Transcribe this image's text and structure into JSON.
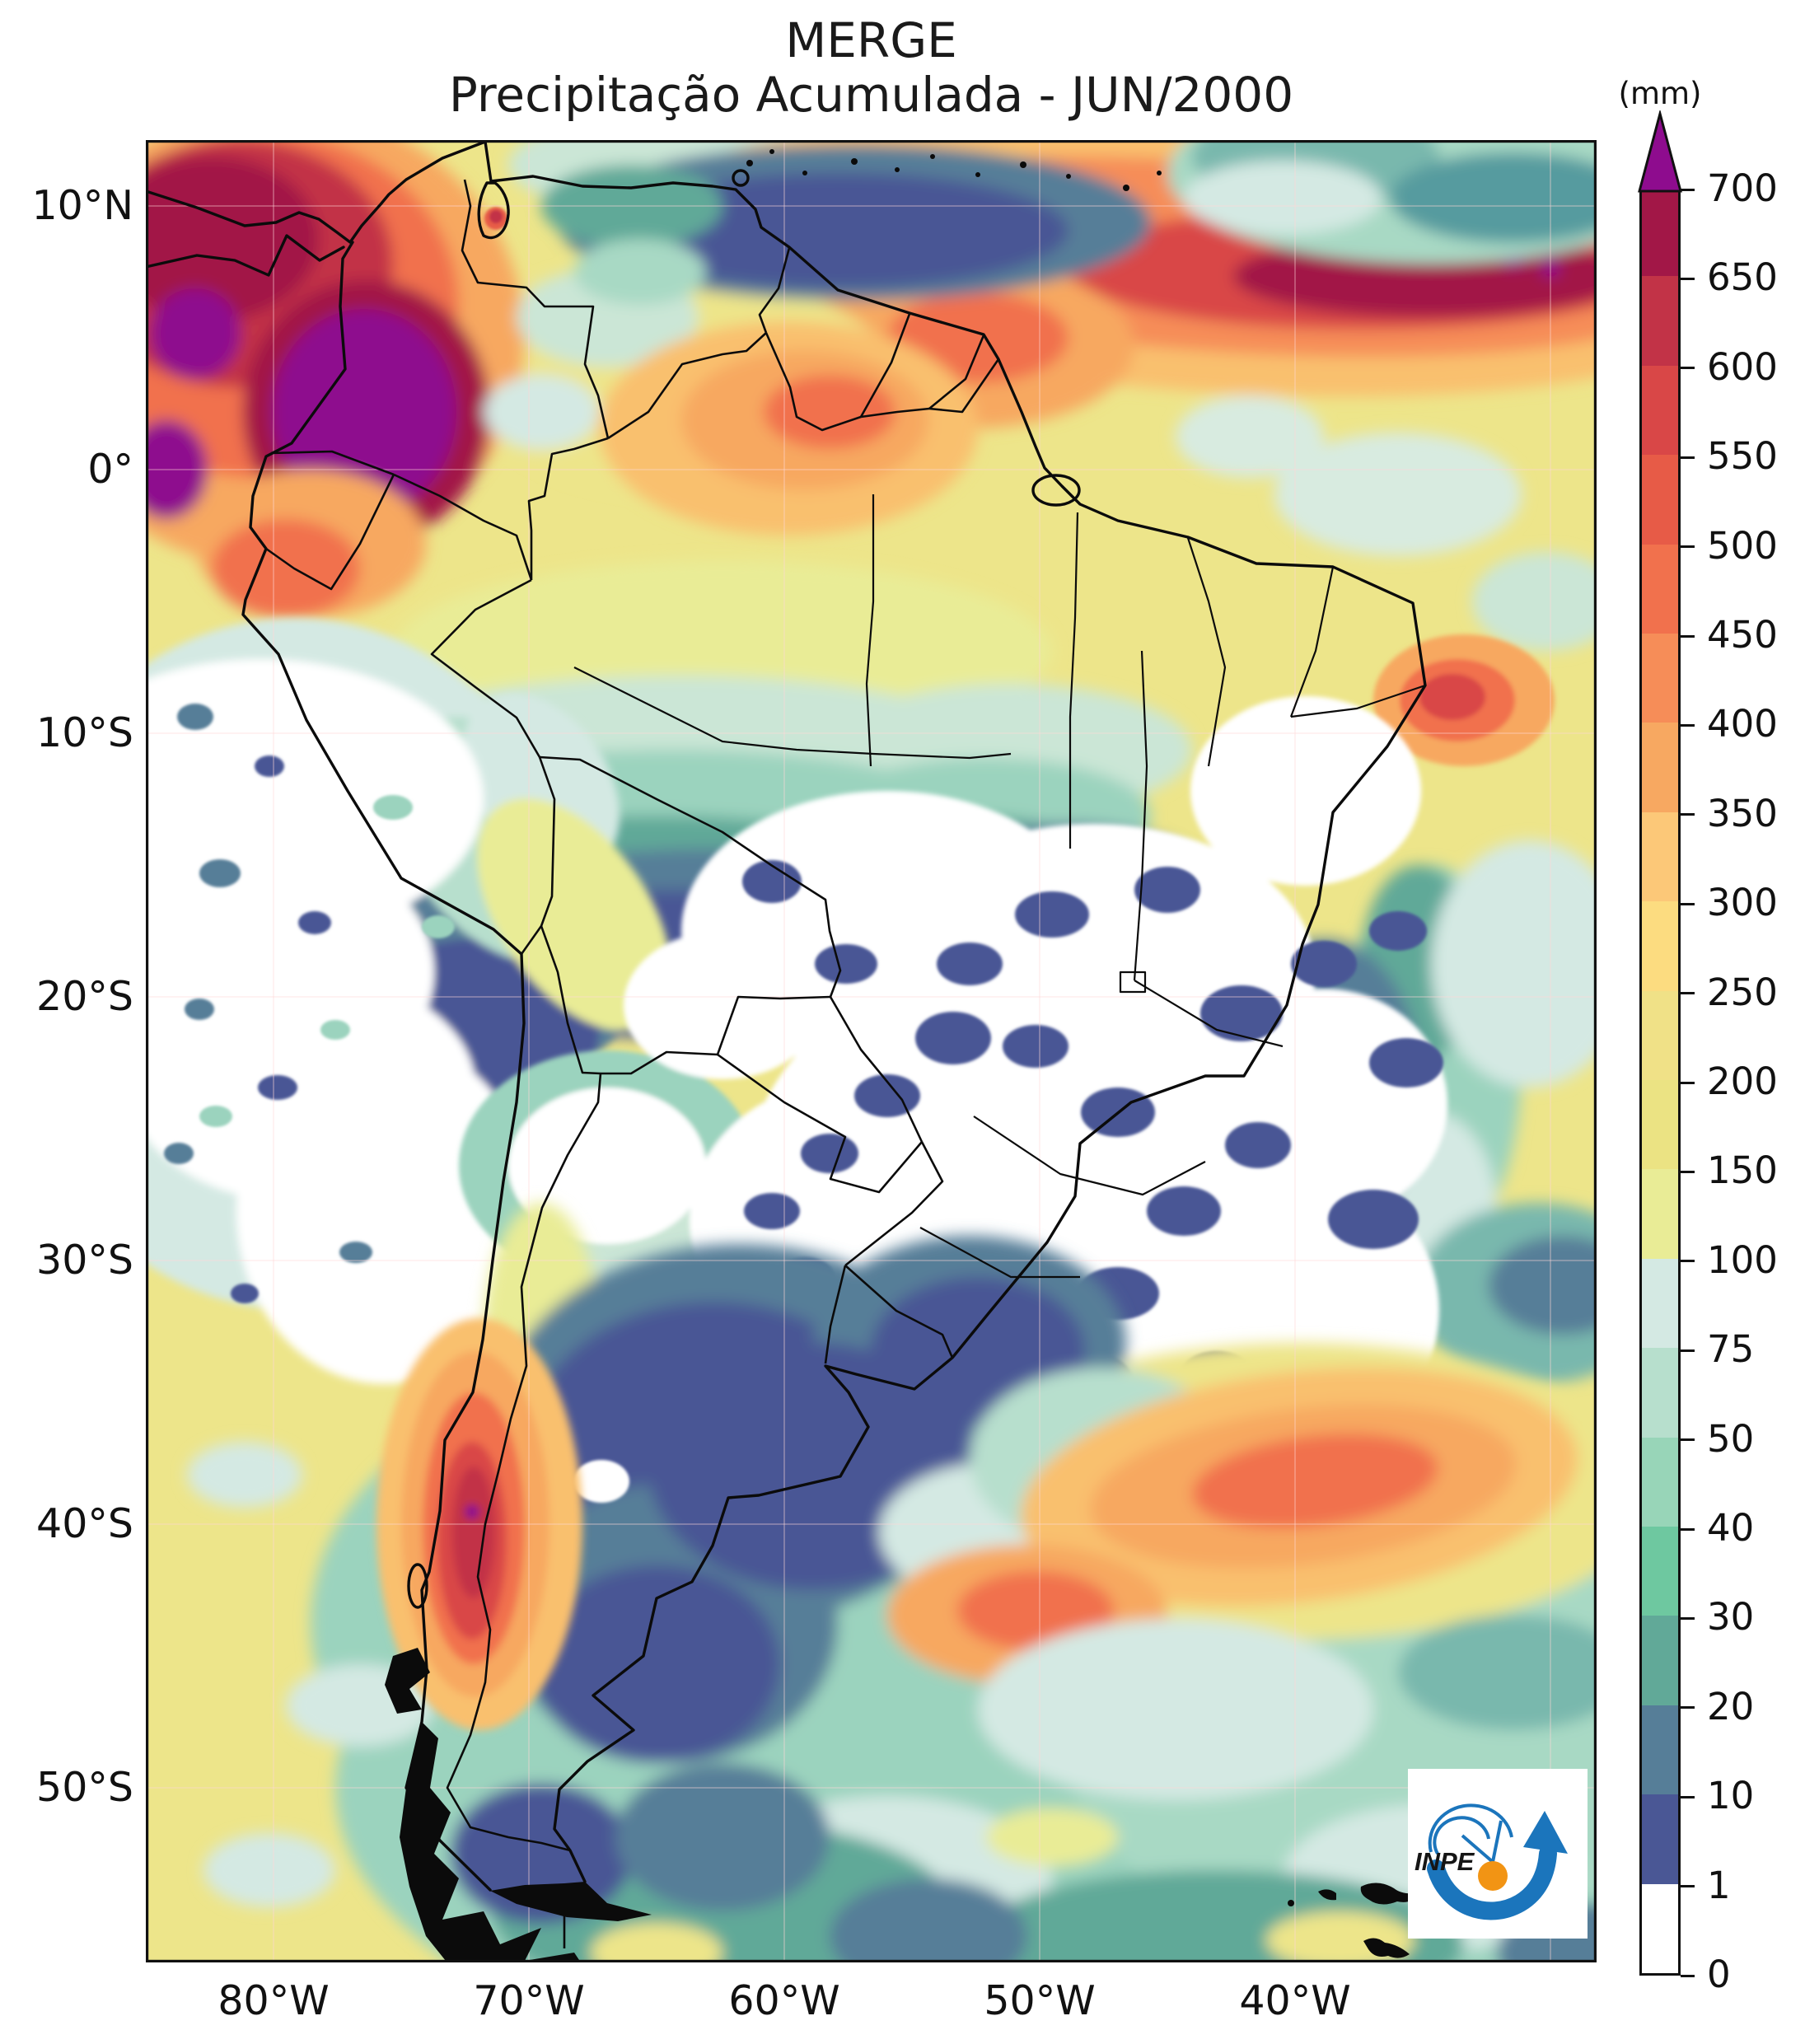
{
  "title": {
    "line1": "MERGE",
    "line2": "Precipitação Acumulada - JUN/2000"
  },
  "colorbar": {
    "unit": "(mm)",
    "tick_labels": [
      "0",
      "1",
      "10",
      "20",
      "30",
      "40",
      "50",
      "75",
      "100",
      "150",
      "200",
      "250",
      "300",
      "350",
      "400",
      "450",
      "500",
      "550",
      "600",
      "650",
      "700"
    ],
    "segment_colors": [
      "#ffffff",
      "#4a5795",
      "#567e98",
      "#61a998",
      "#6ec8a0",
      "#98d5b8",
      "#b7dfcd",
      "#d4e9e3",
      "#e9ec96",
      "#ebe383",
      "#f0e187",
      "#fcdc80",
      "#fcc878",
      "#f7a861",
      "#f68d58",
      "#f1714d",
      "#e75b47",
      "#d94747",
      "#c23347",
      "#a21747"
    ],
    "over_color": "#8e0c8e"
  },
  "axes": {
    "lat_ticks": [
      {
        "label": "10°N",
        "deg": 10
      },
      {
        "label": "0°",
        "deg": 0
      },
      {
        "label": "10°S",
        "deg": -10
      },
      {
        "label": "20°S",
        "deg": -20
      },
      {
        "label": "30°S",
        "deg": -30
      },
      {
        "label": "40°S",
        "deg": -40
      },
      {
        "label": "50°S",
        "deg": -50
      }
    ],
    "lon_ticks": [
      {
        "label": "80°W",
        "deg": -80
      },
      {
        "label": "70°W",
        "deg": -70
      },
      {
        "label": "60°W",
        "deg": -60
      },
      {
        "label": "50°W",
        "deg": -50
      },
      {
        "label": "40°W",
        "deg": -40
      }
    ]
  },
  "logo": {
    "text": "INPE"
  },
  "chart_data": {
    "type": "heatmap",
    "title": "MERGE Precipitação Acumulada - JUN/2000",
    "unit": "mm",
    "region": "South America and adjacent oceans",
    "lon_range": [
      "85°W",
      "28°W"
    ],
    "lat_range": [
      "57°S",
      "13°N"
    ],
    "levels": [
      0,
      1,
      10,
      20,
      30,
      40,
      50,
      75,
      100,
      150,
      200,
      250,
      300,
      350,
      400,
      450,
      500,
      550,
      600,
      650,
      700
    ],
    "palette": [
      "#ffffff",
      "#4a5795",
      "#567e98",
      "#61a998",
      "#6ec8a0",
      "#98d5b8",
      "#b7dfcd",
      "#d4e9e3",
      "#e9ec96",
      "#ebe383",
      "#f0e187",
      "#fcdc80",
      "#fcc878",
      "#f7a861",
      "#f68d58",
      "#f1714d",
      "#e75b47",
      "#d94747",
      "#c23347",
      "#a21747"
    ],
    "over_palette_color": "#8e0c8e",
    "features": [
      {
        "area": "Pacific coast of Colombia (Chocó)",
        "value_mm": ">700"
      },
      {
        "area": "Atlantic ITCZ band near 5–8°N",
        "value_mm": "450–700, local >700"
      },
      {
        "area": "Panama / SW Caribbean",
        "value_mm": "500–700"
      },
      {
        "area": "Venezuela–Guyana interior",
        "value_mm": "300–450"
      },
      {
        "area": "Central Brazil dry-season core",
        "value_mm": "0–1"
      },
      {
        "area": "Interior Northeast Brazil",
        "value_mm": "0–1"
      },
      {
        "area": "SE Pacific / Atacama coast",
        "value_mm": "0–1"
      },
      {
        "area": "Coastal Recife (~8°S)",
        "value_mm": "400–550"
      },
      {
        "area": "Southern Chile coast (37–42°S)",
        "value_mm": "450–650"
      },
      {
        "area": "Subtropical South Atlantic (~33–38°S)",
        "value_mm": "350–450"
      },
      {
        "area": "Paraguay / NE Argentina",
        "value_mm": "1–20"
      },
      {
        "area": "Amazon southern flank (8–12°S)",
        "value_mm": "1–30"
      }
    ]
  }
}
